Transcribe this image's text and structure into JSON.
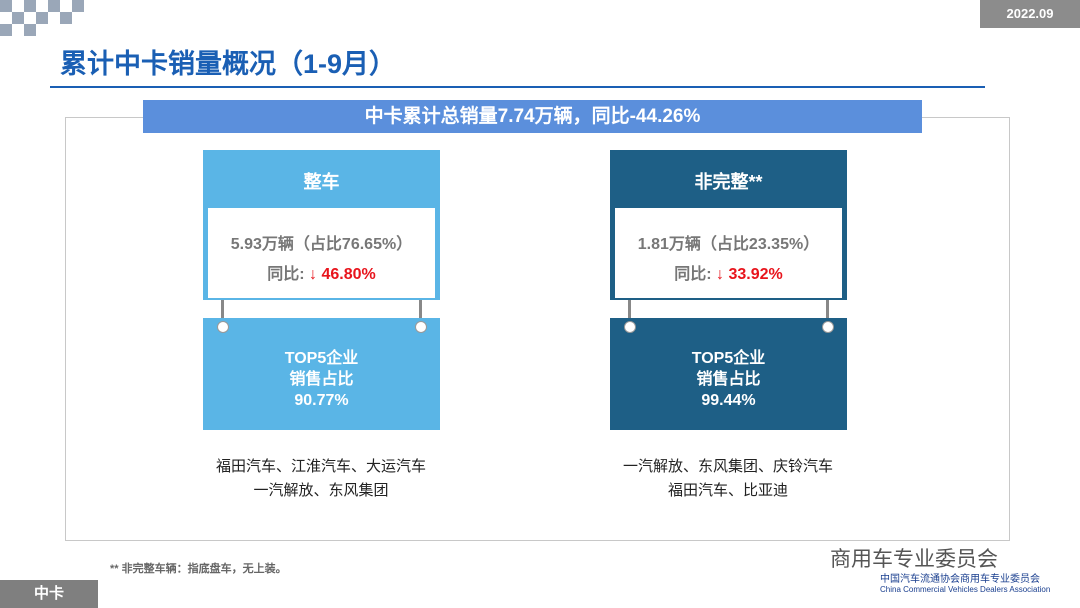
{
  "header": {
    "date": "2022.09",
    "title": "累计中卡销量概况（1-9月）"
  },
  "banner": "中卡累计总销量7.74万辆，同比-44.26%",
  "panels": [
    {
      "title": "整车",
      "volume": "5.93万辆（占比76.65%）",
      "yoy_label": "同比:",
      "yoy_value": "↓ 46.80%",
      "top5_label": [
        "TOP5企业",
        "销售占比"
      ],
      "top5_share": "90.77%",
      "companies": [
        "福田汽车、江淮汽车、大运汽车",
        "一汽解放、东风集团"
      ]
    },
    {
      "title": "非完整**",
      "volume": "1.81万辆（占比23.35%）",
      "yoy_label": "同比:",
      "yoy_value": "↓ 33.92%",
      "top5_label": [
        "TOP5企业",
        "销售占比"
      ],
      "top5_share": "99.44%",
      "companies": [
        "一汽解放、东风集团、庆铃汽车",
        "福田汽车、比亚迪"
      ]
    }
  ],
  "footnote": "** 非完整车辆：指底盘车，无上装。",
  "footer": {
    "tag": "中卡",
    "watermark": "商用车专业委员会",
    "org_cn": "中国汽车流通协会商用车专业委员会",
    "org_en": "China Commercial Vehicles Dealers Association"
  }
}
